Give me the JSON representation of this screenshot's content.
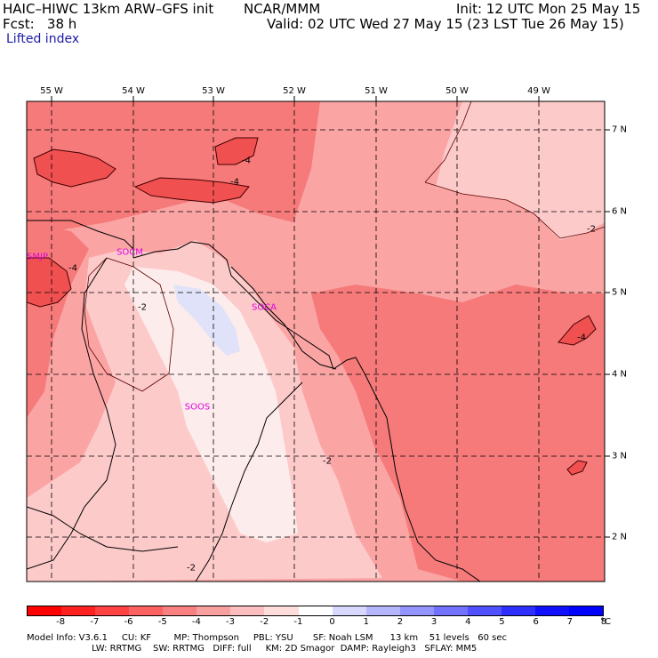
{
  "header": {
    "model_line": "HAIC–HIWC 13km ARW–GFS init",
    "org": "NCAR/MMM",
    "init": "Init: 12 UTC Mon 25 May 15",
    "fcst": "Fcst:   38 h",
    "valid": "Valid: 02 UTC Wed 27 May 15 (23 LST Tue 26 May 15)",
    "field": "Lifted index"
  },
  "map": {
    "lon_labels": [
      "55 W",
      "54 W",
      "53 W",
      "52 W",
      "51 W",
      "50 W",
      "49 W"
    ],
    "lat_labels": [
      "7 N",
      "6 N",
      "5 N",
      "4 N",
      "3 N",
      "2 N"
    ],
    "stations": [
      "SMJP",
      "SOCM",
      "SOCA",
      "SOOS"
    ],
    "contour_labels": [
      "-4",
      "-4",
      "-4",
      "-2",
      "-2",
      "-2",
      "-2",
      "-4",
      "-4",
      "-2",
      "-4"
    ],
    "colors": {
      "deep": "#f05050",
      "mid": "#f67a7a",
      "light": "#fba4a4",
      "pale": "#fdcaca",
      "white": "#fdecec",
      "blue": "#dfe2f8"
    }
  },
  "colorbar": {
    "labels": [
      "-8",
      "-7",
      "-6",
      "-5",
      "-4",
      "-3",
      "-2",
      "-1",
      "0",
      "1",
      "2",
      "3",
      "4",
      "5",
      "6",
      "7",
      "8",
      "°C"
    ],
    "colors": [
      "#ff0000",
      "#ff2020",
      "#ff4242",
      "#fc6262",
      "#f98080",
      "#f8a0a0",
      "#fbbdbd",
      "#fddcdc",
      "#ffffff",
      "#d8d8ff",
      "#b6b6ff",
      "#9494ff",
      "#7272ff",
      "#5050ff",
      "#2e2eff",
      "#1010ff",
      "#0000ff"
    ]
  },
  "footer": {
    "line1": "Model Info: V3.6.1     CU: KF        MP: Thompson     PBL: YSU       SF: Noah LSM      13 km    51 levels   60 sec",
    "line2": "                       LW: RRTMG    SW: RRTMG   DIFF: full     KM: 2D Smagor  DAMP: Rayleigh3   SFLAY: MM5"
  }
}
